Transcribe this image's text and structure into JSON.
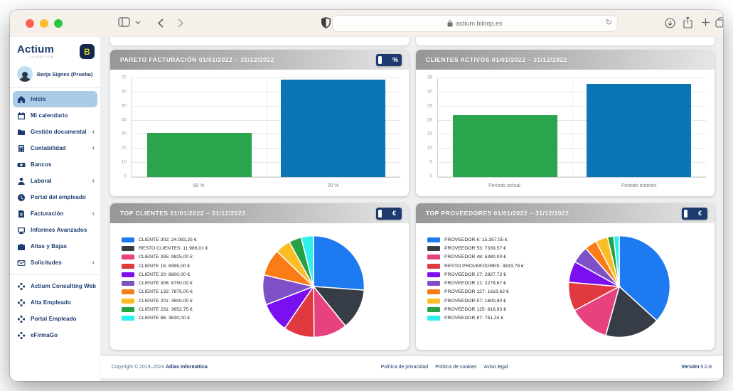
{
  "browser": {
    "url": "actium.biloop.es",
    "reload_glyph": "↻"
  },
  "sidebar": {
    "brand": "Actium",
    "brand_sub": "consulting",
    "brand_badge": "B",
    "user": "Borja Signes (Prueba)",
    "items": [
      {
        "label": "Inicio",
        "icon": "home",
        "active": true
      },
      {
        "label": "Mi calendario",
        "icon": "calendar"
      },
      {
        "label": "Gestión documental",
        "icon": "folder",
        "chevron": true
      },
      {
        "label": "Contabilidad",
        "icon": "book",
        "chevron": true
      },
      {
        "label": "Bancos",
        "icon": "money"
      },
      {
        "label": "Laboral",
        "icon": "person",
        "chevron": true
      },
      {
        "label": "Portal del empleado",
        "icon": "clock"
      },
      {
        "label": "Facturación",
        "icon": "invoice",
        "chevron": true
      },
      {
        "label": "Informes Avanzados",
        "icon": "report"
      },
      {
        "label": "Altas y Bajas",
        "icon": "briefcase"
      },
      {
        "label": "Solicitudes",
        "icon": "envelope",
        "chevron": true
      }
    ],
    "links": [
      {
        "label": "Actium Consulting Web",
        "icon": "grid"
      },
      {
        "label": "Alta Empleado",
        "icon": "grid"
      },
      {
        "label": "Portal Empleado",
        "icon": "grid"
      },
      {
        "label": "eFirmaGo",
        "icon": "grid"
      }
    ]
  },
  "panels": [
    {
      "title": "PARETO FACTURACIÓN 01/01/2022 – 31/12/2022",
      "unit_toggle": "%",
      "chart_data": {
        "type": "bar",
        "categories": [
          "80 %",
          "20 %"
        ],
        "values": [
          31,
          69
        ],
        "bar_colors": [
          "#2ba44e",
          "#0b76b4"
        ],
        "ylim": [
          0,
          70
        ],
        "ytick_step": 10,
        "grid": true
      }
    },
    {
      "title": "CLIENTES ACTIVOS 01/01/2022 – 31/12/2022",
      "chart_data": {
        "type": "bar",
        "categories": [
          "Periodo actual",
          "Periodo anterior"
        ],
        "values": [
          22,
          33
        ],
        "bar_colors": [
          "#2ba44e",
          "#0b76b4"
        ],
        "ylim": [
          0,
          35
        ],
        "ytick_step": 5,
        "grid": true
      }
    },
    {
      "title": "TOP CLIENTES 01/01/2022 – 31/12/2022",
      "unit_toggle": "€",
      "chart_data": {
        "type": "pie",
        "legend_position": "left",
        "items": [
          {
            "label": "CLIENTE 302",
            "value": 24083.25,
            "display": "CLIENTE 302: 24.083,25 €",
            "color": "#1e7af0"
          },
          {
            "label": "RESTO CLIENTES",
            "value": 11986.01,
            "display": "RESTO CLIENTES: 11.986,01 €",
            "color": "#363d47"
          },
          {
            "label": "CLIENTE 335",
            "value": 9825.0,
            "display": "CLIENTE 335: 9825,00 €",
            "color": "#e8417f"
          },
          {
            "label": "CLIENTE 15",
            "value": 8995.0,
            "display": "CLIENTE 15: 8995,00 €",
            "color": "#e0393f"
          },
          {
            "label": "CLIENTE 20",
            "value": 8800.0,
            "display": "CLIENTE 20: 8800,00 €",
            "color": "#7a10f0"
          },
          {
            "label": "CLIENTE 308",
            "value": 8750.0,
            "display": "CLIENTE 308: 8750,00 €",
            "color": "#7e4fc7"
          },
          {
            "label": "CLIENTE 132",
            "value": 7875.0,
            "display": "CLIENTE 132: 7875,00 €",
            "color": "#f97c16"
          },
          {
            "label": "CLIENTE 201",
            "value": 4500.0,
            "display": "CLIENTE 201: 4500,00 €",
            "color": "#fbbc24"
          },
          {
            "label": "CLIENTE 231",
            "value": 3652.75,
            "display": "CLIENTE 231: 3652,75 €",
            "color": "#27a146"
          },
          {
            "label": "CLIENTE 86",
            "value": 3630.0,
            "display": "CLIENTE 86: 3630,00 €",
            "color": "#2ef0ef"
          }
        ]
      }
    },
    {
      "title": "TOP PROVEEDORES 01/01/2022 – 31/12/2022",
      "unit_toggle": "€",
      "chart_data": {
        "type": "pie",
        "legend_position": "left",
        "items": [
          {
            "label": "PROVEEDOR 6",
            "value": 15357.05,
            "display": "PROVEEDOR 6: 15.357,05 €",
            "color": "#1e7af0"
          },
          {
            "label": "PROVEEDOR 53",
            "value": 7339.57,
            "display": "PROVEEDOR 53: 7339,57 €",
            "color": "#363d47"
          },
          {
            "label": "PROVEEDOR 48",
            "value": 5380.0,
            "display": "PROVEEDOR 48: 5380,00 €",
            "color": "#e8417f"
          },
          {
            "label": "RESTO PROVEEDORES",
            "value": 3833.79,
            "display": "RESTO PROVEEDORES: 3833,79 €",
            "color": "#e0393f"
          },
          {
            "label": "PROVEEDOR 27",
            "value": 2827.72,
            "display": "PROVEEDOR 27: 2827,72 €",
            "color": "#7a10f0"
          },
          {
            "label": "PROVEEDOR 21",
            "value": 2278.67,
            "display": "PROVEEDOR 21: 2278,67 €",
            "color": "#7e4fc7"
          },
          {
            "label": "PROVEEDOR 127",
            "value": 1619.62,
            "display": "PROVEEDOR 127: 1619,62 €",
            "color": "#f97c16"
          },
          {
            "label": "PROVEEDOR 57",
            "value": 1600.8,
            "display": "PROVEEDOR 57: 1600,80 €",
            "color": "#fbbc24"
          },
          {
            "label": "PROVEEDOR 125",
            "value": 816.93,
            "display": "PROVEEDOR 125: 816,93 €",
            "color": "#27a146"
          },
          {
            "label": "PROVEEDOR 87",
            "value": 751.24,
            "display": "PROVEEDOR 87: 751,24 €",
            "color": "#2ef0ef"
          }
        ]
      }
    }
  ],
  "footer": {
    "copyright_prefix": "Copyright © 2019–2024 ",
    "copyright_company": "Adias Informática",
    "links": [
      "Política de privacidad",
      "Política de cookies",
      "Aviso legal"
    ],
    "version_label": "Versión",
    "version_value": " 5.0.8"
  }
}
